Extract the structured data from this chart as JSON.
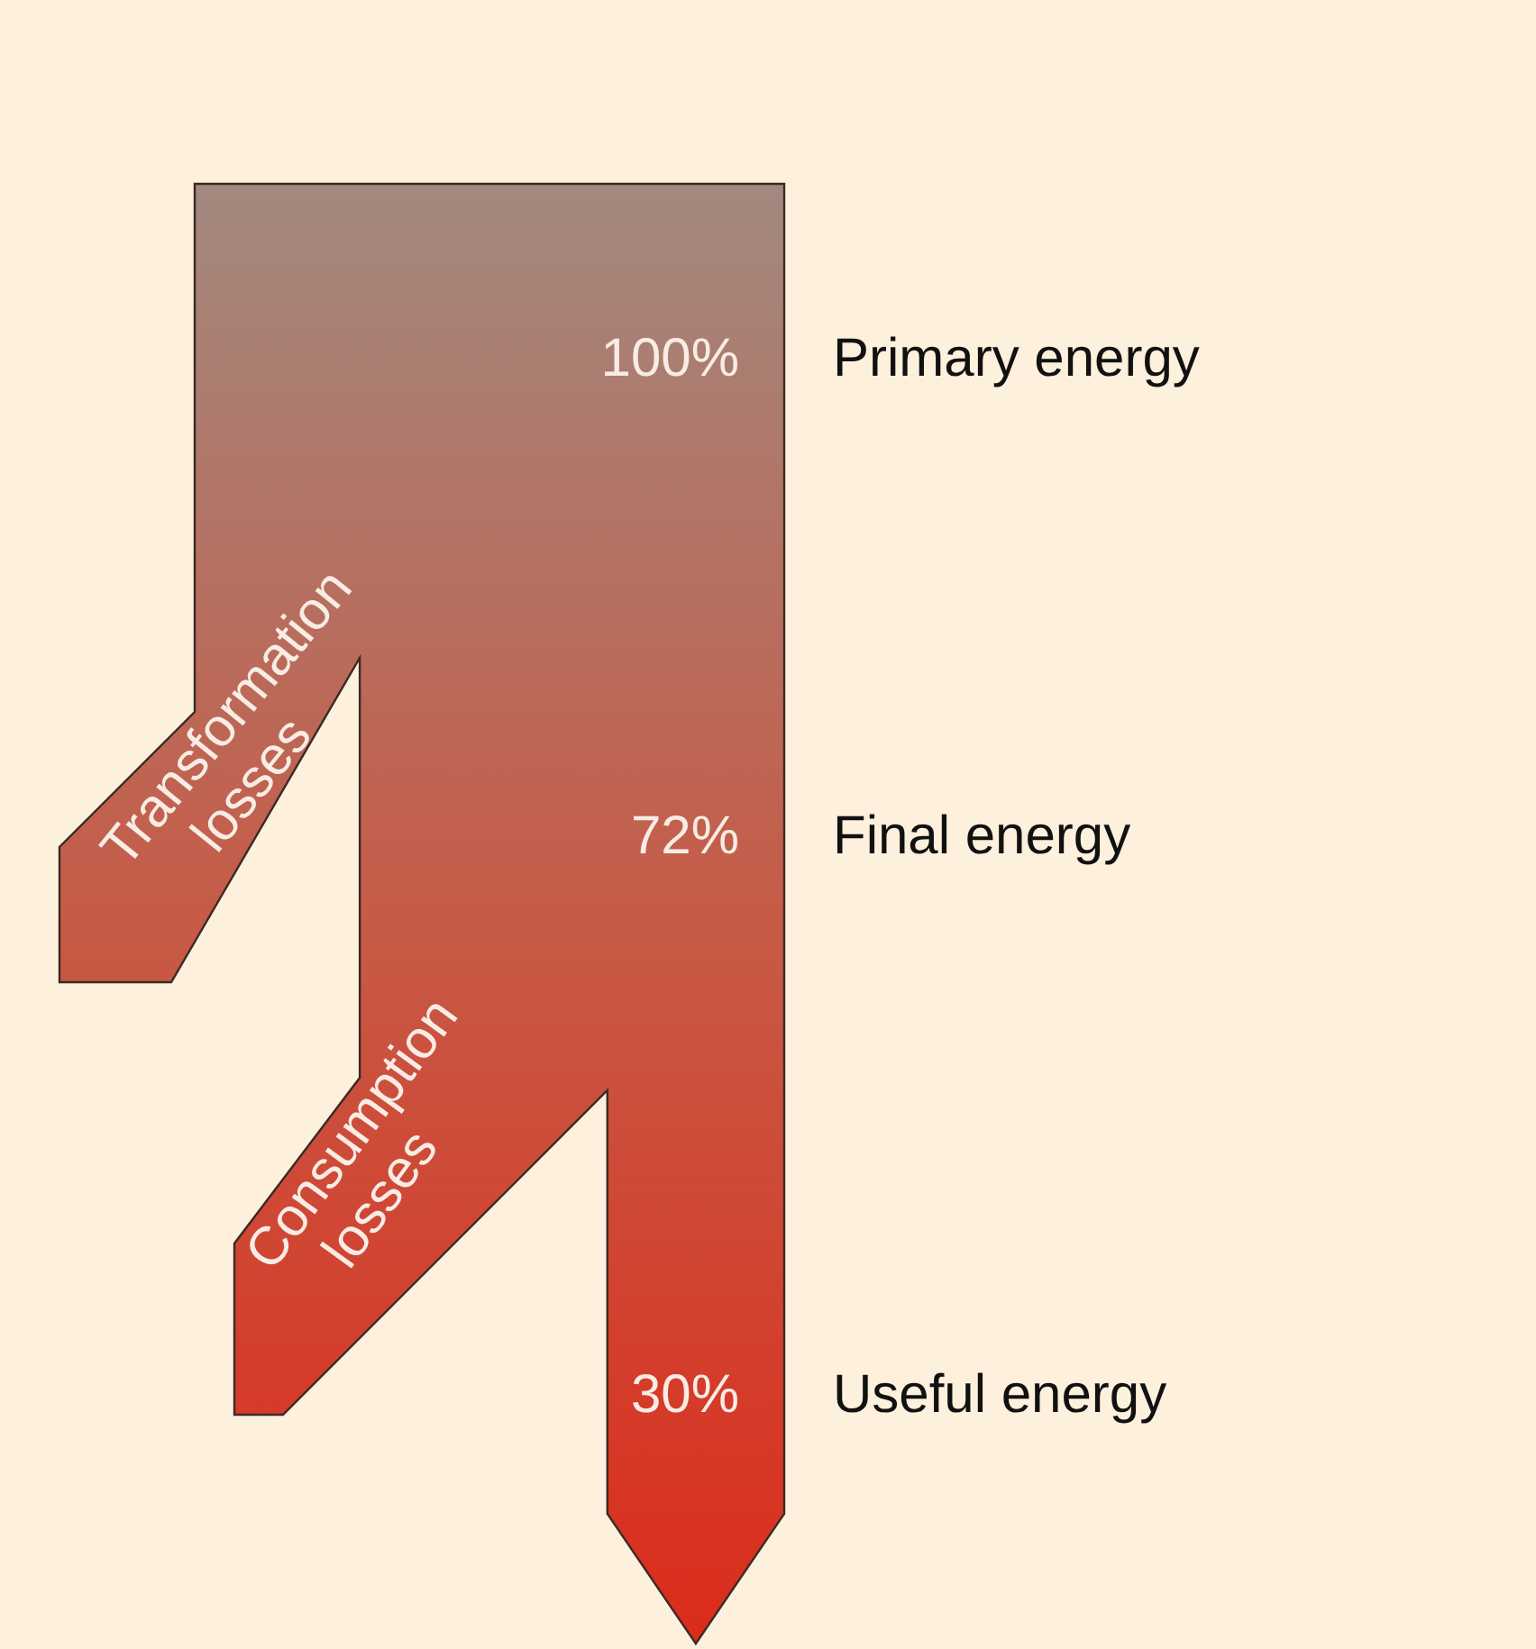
{
  "chart_data": {
    "type": "other",
    "categories": [
      "Primary energy",
      "Final energy",
      "Useful energy"
    ],
    "values": [
      100,
      72,
      30
    ],
    "value_labels": [
      "100%",
      "72%",
      "30%"
    ],
    "annotations": [
      "Transformation losses",
      "Consumption losses"
    ]
  }
}
